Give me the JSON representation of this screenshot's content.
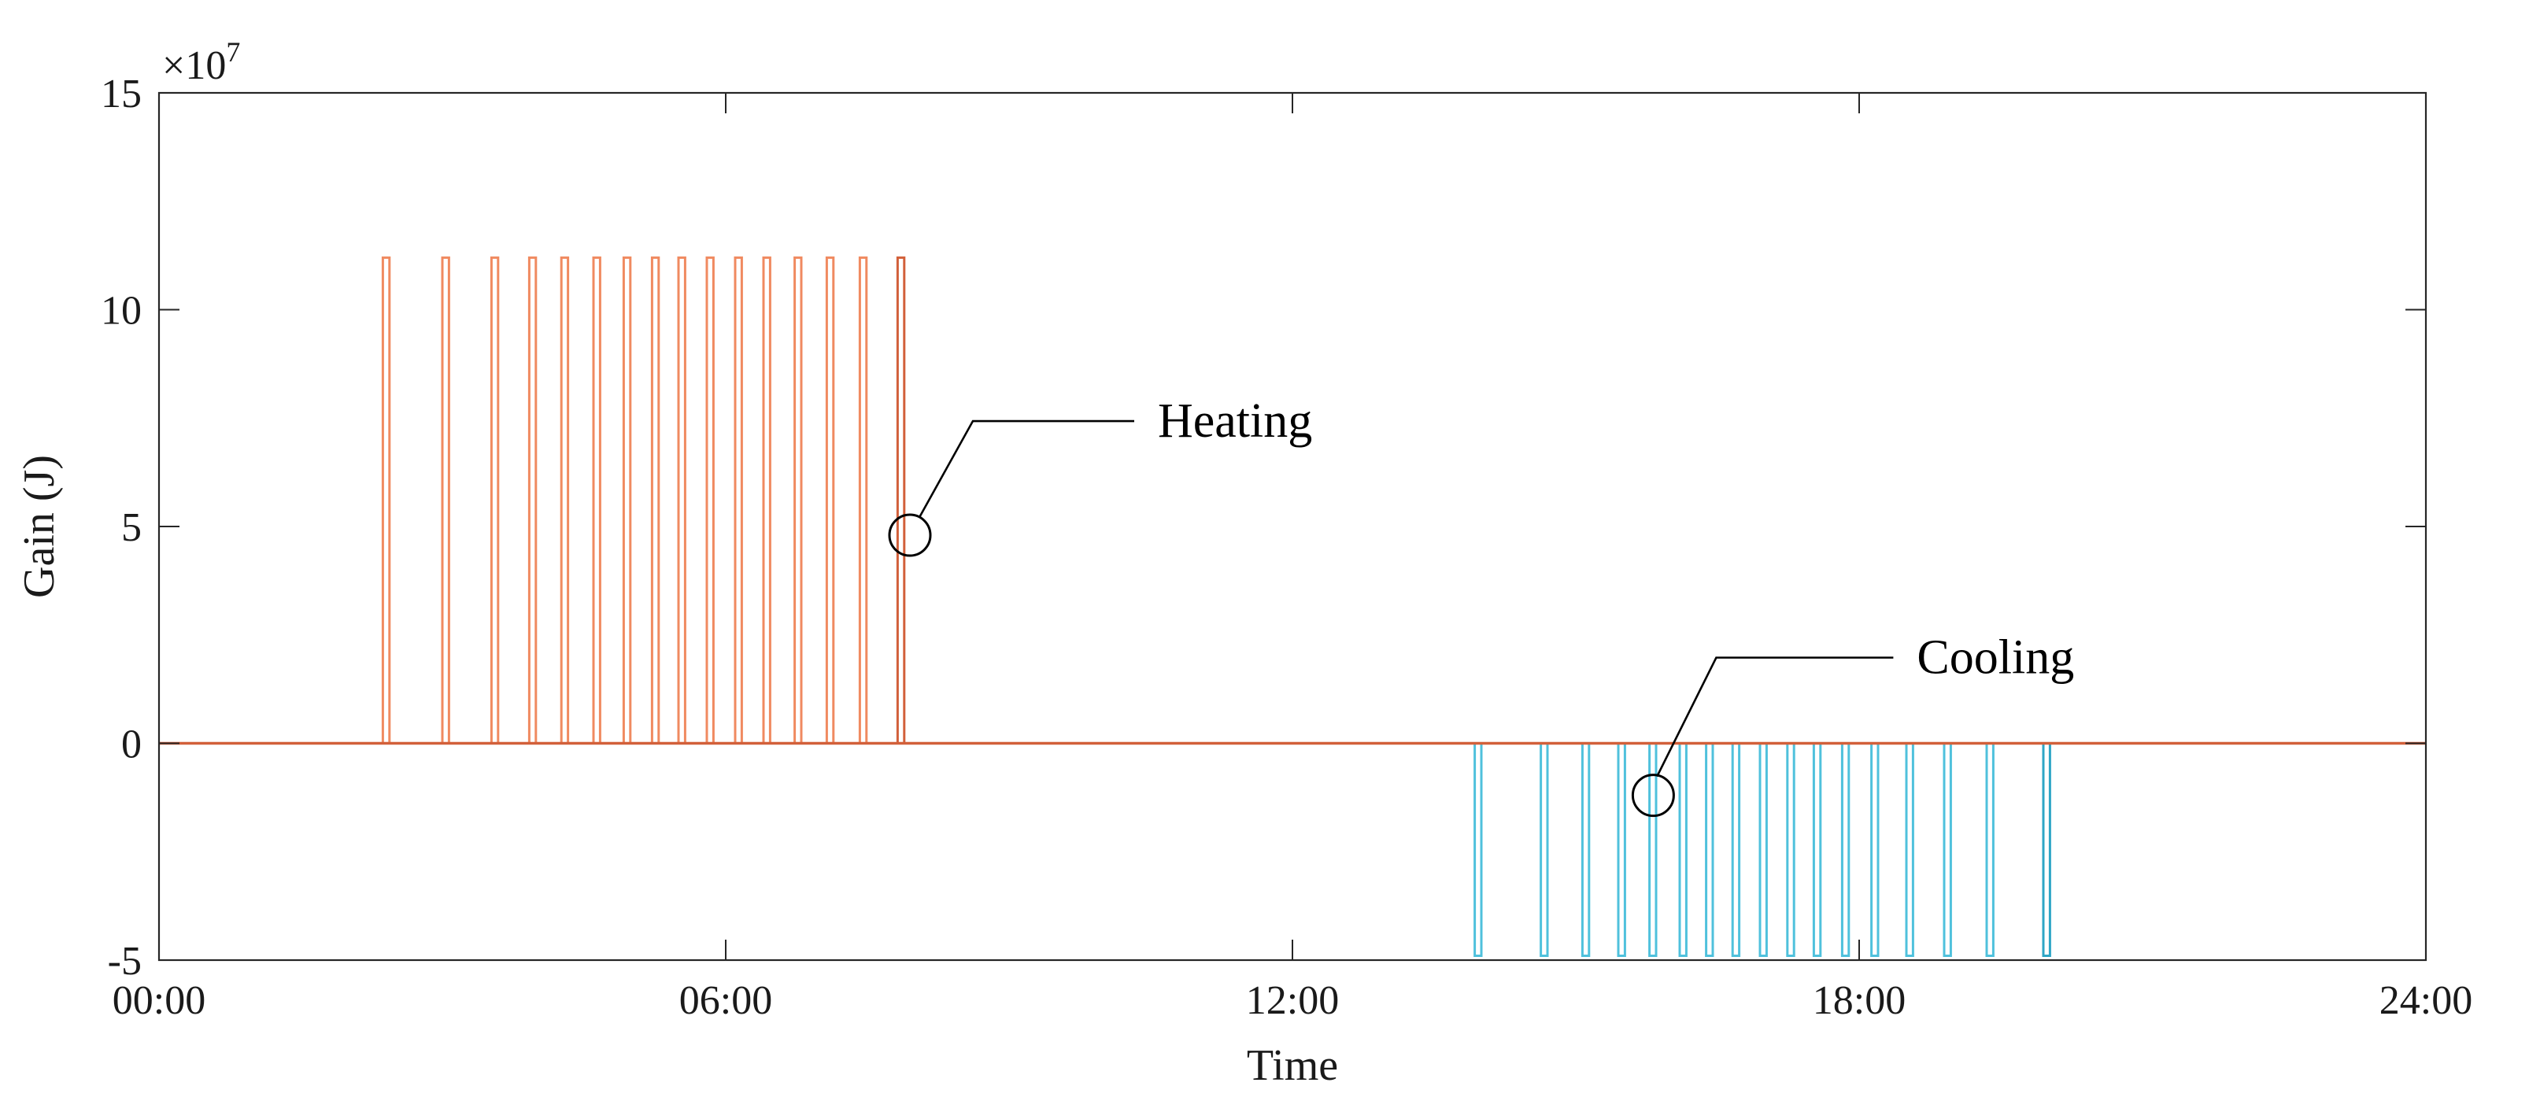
{
  "chart_data": {
    "type": "line",
    "xlabel": "Time",
    "ylabel": "Gain (J)",
    "x_unit": "hours",
    "xlim": [
      0,
      24
    ],
    "ylim": [
      -5,
      15
    ],
    "y_scale_prefix": "×10",
    "y_scale_exponent": "7",
    "x_ticks": [
      {
        "value": 0,
        "label": "00:00"
      },
      {
        "value": 6,
        "label": "06:00"
      },
      {
        "value": 12,
        "label": "12:00"
      },
      {
        "value": 18,
        "label": "18:00"
      },
      {
        "value": 24,
        "label": "24:00"
      }
    ],
    "y_ticks": [
      {
        "value": -5,
        "label": "-5"
      },
      {
        "value": 0,
        "label": "0"
      },
      {
        "value": 5,
        "label": "5"
      },
      {
        "value": 10,
        "label": "10"
      },
      {
        "value": 15,
        "label": "15"
      }
    ],
    "grid": false,
    "series": [
      {
        "name": "Heating",
        "color": "#F08A60",
        "end_color": "#D2603A",
        "baseline": 0,
        "peak": 11.2,
        "pulse_times": [
          2.37,
          3.0,
          3.52,
          3.92,
          4.26,
          4.6,
          4.92,
          5.22,
          5.5,
          5.8,
          6.1,
          6.4,
          6.73,
          7.07,
          7.42,
          7.82
        ]
      },
      {
        "name": "Cooling",
        "color": "#4FC1DC",
        "end_color": "#2EA6C6",
        "baseline": 0,
        "peak": -4.9,
        "pulse_times": [
          13.93,
          14.63,
          15.07,
          15.45,
          15.78,
          16.1,
          16.38,
          16.66,
          16.95,
          17.24,
          17.52,
          17.82,
          18.13,
          18.5,
          18.9,
          19.35,
          19.95
        ]
      }
    ],
    "annotations": [
      {
        "text": "Heating",
        "marker_x": 7.95,
        "marker_y": 4.8
      },
      {
        "text": "Cooling",
        "marker_x": 15.82,
        "marker_y": -1.2
      }
    ]
  }
}
